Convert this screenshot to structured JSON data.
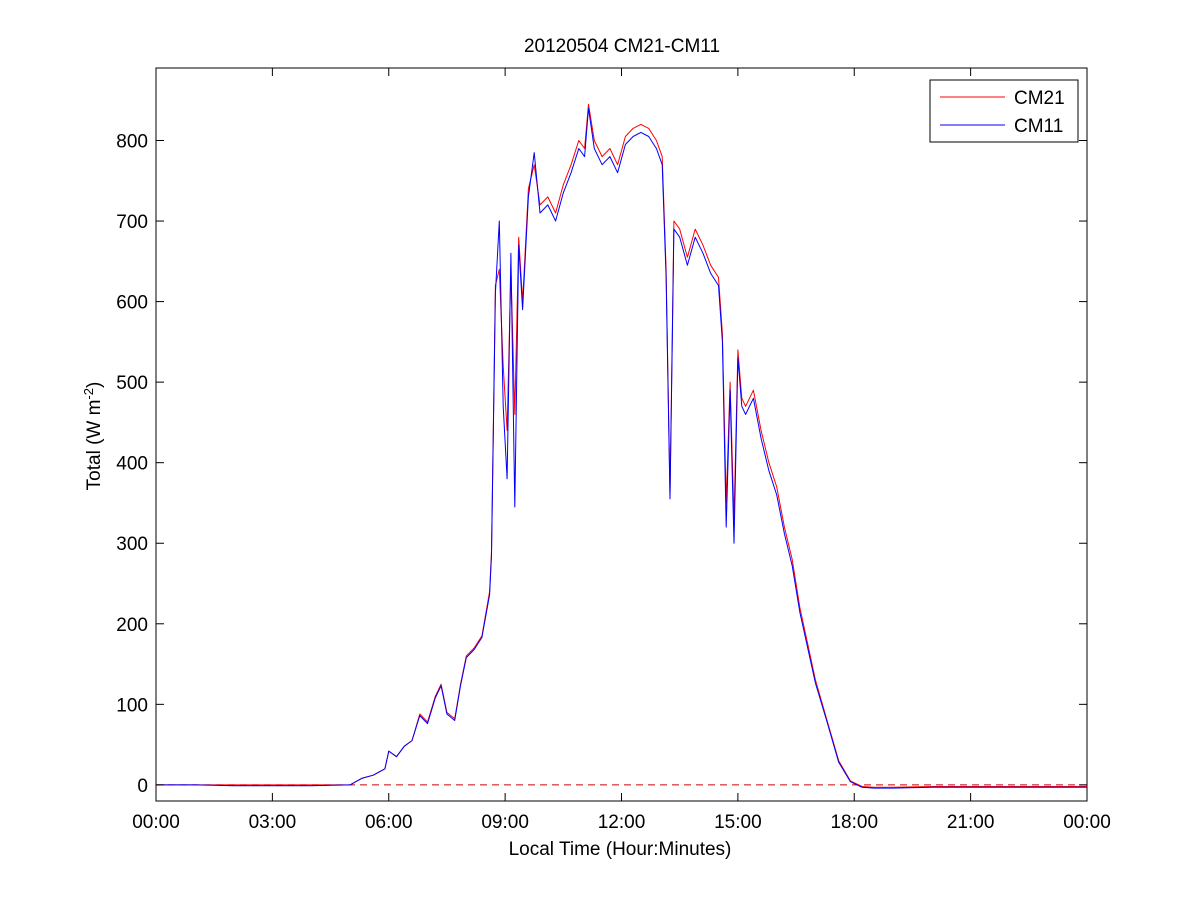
{
  "chart_data": {
    "type": "line",
    "title": "20120504 CM21-CM11",
    "xlabel": "Local Time (Hour:Minutes)",
    "ylabel": {
      "prefix": "Total (W m",
      "sup": "-2",
      "suffix": ")"
    },
    "xlim": [
      0,
      24
    ],
    "ylim": [
      -20,
      890
    ],
    "x_ticks": [
      0,
      3,
      6,
      9,
      12,
      15,
      18,
      21,
      24
    ],
    "x_tick_labels": [
      "00:00",
      "03:00",
      "06:00",
      "09:00",
      "12:00",
      "15:00",
      "18:00",
      "21:00",
      "00:00"
    ],
    "y_ticks": [
      0,
      100,
      200,
      300,
      400,
      500,
      600,
      700,
      800
    ],
    "y_tick_labels": [
      "0",
      "100",
      "200",
      "300",
      "400",
      "500",
      "600",
      "700",
      "800"
    ],
    "grid": false,
    "legend_position": "top-right",
    "reference_line": {
      "y": 0,
      "style": "dashed",
      "color": "#cc0000"
    },
    "x_units": "hours",
    "series": [
      {
        "name": "CM21",
        "color": "#ff0000",
        "x": [
          0,
          1,
          2,
          3,
          4,
          5,
          5.3,
          5.6,
          5.9,
          6.0,
          6.2,
          6.4,
          6.6,
          6.8,
          7.0,
          7.2,
          7.35,
          7.5,
          7.7,
          7.85,
          8.0,
          8.2,
          8.4,
          8.6,
          8.65,
          8.75,
          8.85,
          8.95,
          9.05,
          9.15,
          9.25,
          9.35,
          9.45,
          9.6,
          9.75,
          9.9,
          10.1,
          10.3,
          10.5,
          10.7,
          10.9,
          11.05,
          11.15,
          11.3,
          11.5,
          11.7,
          11.9,
          12.1,
          12.3,
          12.5,
          12.7,
          12.9,
          13.05,
          13.15,
          13.25,
          13.35,
          13.5,
          13.7,
          13.9,
          14.1,
          14.3,
          14.5,
          14.6,
          14.7,
          14.8,
          14.9,
          15.0,
          15.1,
          15.2,
          15.4,
          15.6,
          15.8,
          16.0,
          16.2,
          16.4,
          16.6,
          16.8,
          17.0,
          17.3,
          17.6,
          17.9,
          18.2,
          18.5,
          18.8,
          19.0,
          20.0,
          21.0,
          22.0,
          23.0,
          24.0
        ],
        "y": [
          0,
          0,
          0,
          0,
          0,
          0,
          8,
          12,
          20,
          42,
          35,
          48,
          55,
          88,
          78,
          110,
          125,
          90,
          82,
          125,
          160,
          170,
          185,
          240,
          290,
          620,
          640,
          520,
          440,
          640,
          460,
          680,
          600,
          740,
          770,
          720,
          730,
          710,
          745,
          770,
          800,
          790,
          845,
          800,
          780,
          790,
          770,
          805,
          815,
          820,
          815,
          800,
          780,
          640,
          360,
          700,
          690,
          655,
          690,
          670,
          645,
          630,
          560,
          350,
          500,
          330,
          540,
          480,
          470,
          490,
          440,
          400,
          370,
          320,
          280,
          220,
          175,
          130,
          80,
          30,
          5,
          -2,
          -3,
          -3,
          -3,
          -2,
          -2,
          -2,
          -2,
          -2
        ]
      },
      {
        "name": "CM11",
        "color": "#0000ff",
        "x": [
          0,
          1,
          2,
          3,
          4,
          5,
          5.3,
          5.6,
          5.9,
          6.0,
          6.2,
          6.4,
          6.6,
          6.8,
          7.0,
          7.2,
          7.35,
          7.5,
          7.7,
          7.85,
          8.0,
          8.2,
          8.4,
          8.6,
          8.65,
          8.75,
          8.85,
          8.95,
          9.05,
          9.15,
          9.25,
          9.35,
          9.45,
          9.6,
          9.75,
          9.9,
          10.1,
          10.3,
          10.5,
          10.7,
          10.9,
          11.05,
          11.15,
          11.3,
          11.5,
          11.7,
          11.9,
          12.1,
          12.3,
          12.5,
          12.7,
          12.9,
          13.05,
          13.15,
          13.25,
          13.35,
          13.5,
          13.7,
          13.9,
          14.1,
          14.3,
          14.5,
          14.6,
          14.7,
          14.8,
          14.9,
          15.0,
          15.1,
          15.2,
          15.4,
          15.6,
          15.8,
          16.0,
          16.2,
          16.4,
          16.6,
          16.8,
          17.0,
          17.3,
          17.6,
          17.9,
          18.2,
          18.5,
          18.8,
          19.0,
          20.0,
          21.0,
          22.0,
          23.0,
          24.0
        ],
        "y": [
          0,
          0,
          -1,
          -1,
          -1,
          0,
          8,
          12,
          20,
          42,
          35,
          48,
          55,
          86,
          76,
          108,
          123,
          88,
          80,
          123,
          158,
          168,
          183,
          236,
          285,
          610,
          700,
          470,
          380,
          660,
          345,
          670,
          590,
          730,
          785,
          710,
          720,
          700,
          735,
          760,
          790,
          780,
          840,
          790,
          770,
          780,
          760,
          795,
          805,
          810,
          805,
          790,
          770,
          630,
          355,
          690,
          680,
          645,
          680,
          660,
          635,
          620,
          550,
          320,
          490,
          300,
          530,
          470,
          460,
          480,
          430,
          390,
          360,
          312,
          272,
          214,
          170,
          126,
          78,
          28,
          4,
          -3,
          -4,
          -4,
          -4,
          -3,
          -3,
          -3,
          -3,
          -3
        ]
      }
    ]
  }
}
